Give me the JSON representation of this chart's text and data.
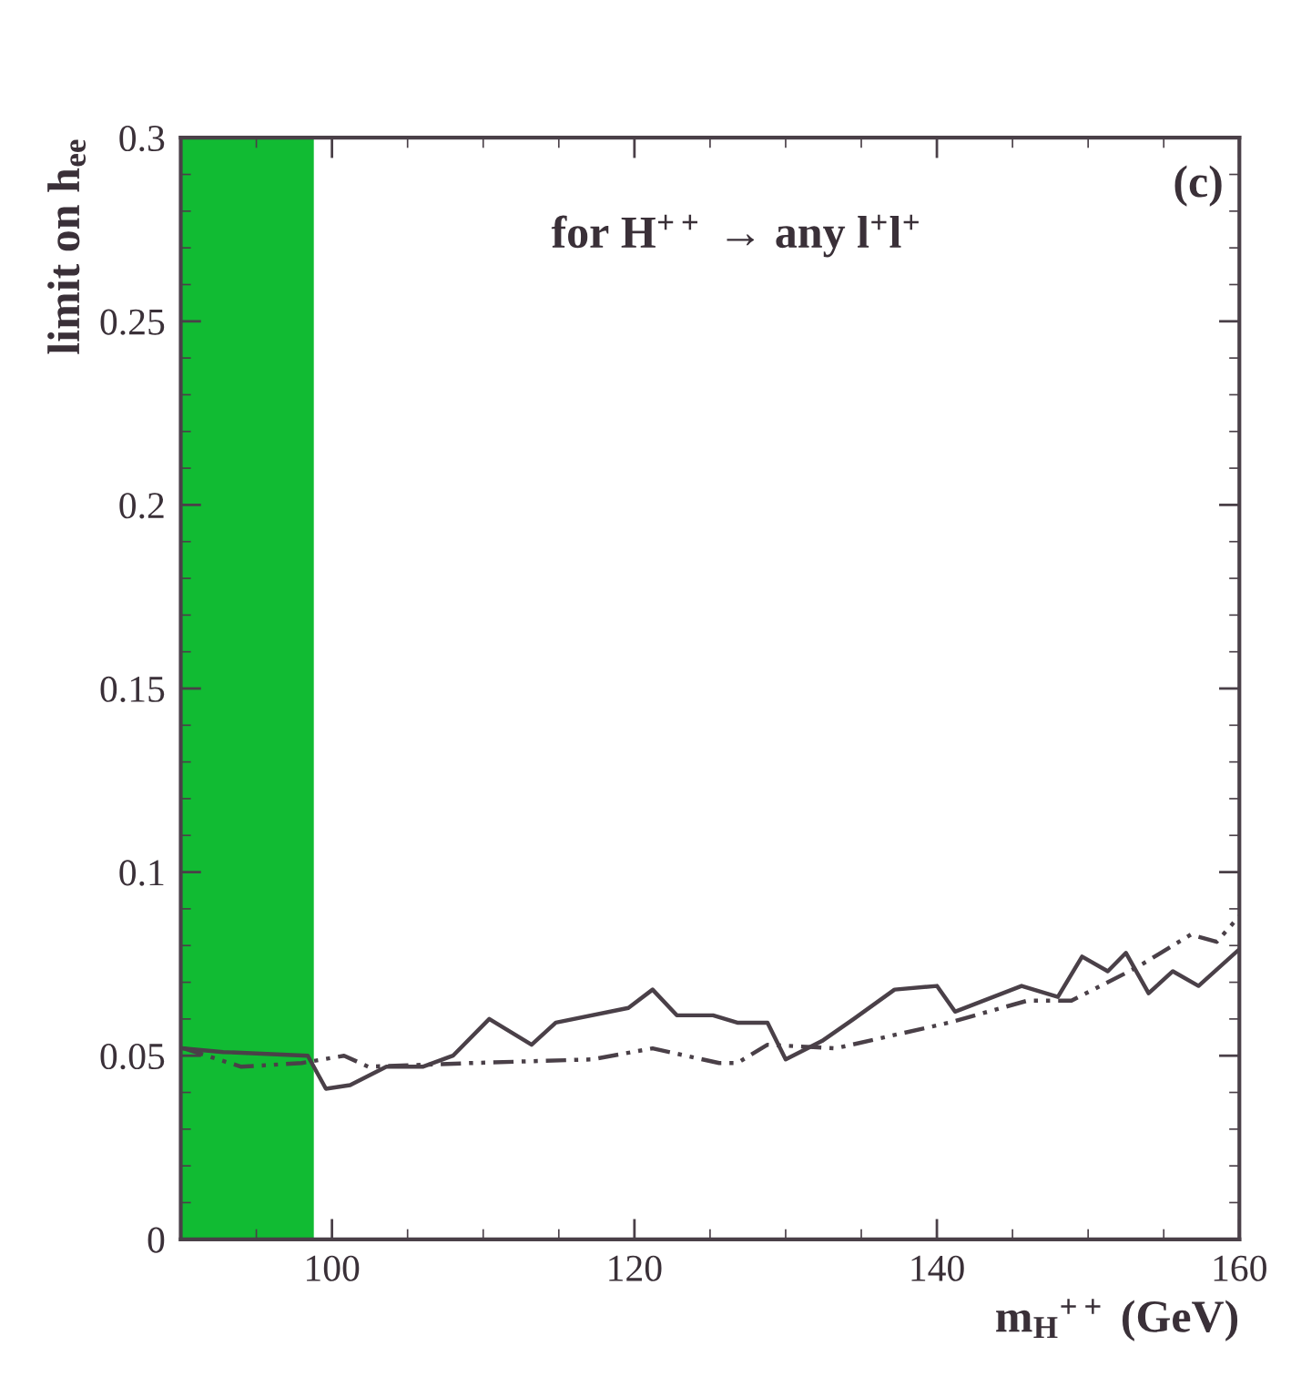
{
  "chart_data": {
    "type": "line",
    "ylabel": "limit on h$_{ee}$",
    "xlabel": "m$_{H}$$^{++}$ (GeV)",
    "annotations": [
      "for H$^{++}$ → any l$^{+}$l$^{+}$",
      "(c)"
    ],
    "xlim": [
      90,
      160
    ],
    "xticks": [
      100,
      120,
      140,
      160
    ],
    "ylim": [
      0,
      0.3
    ],
    "yticks": [
      0,
      0.05,
      0.1,
      0.15,
      0.2,
      0.25,
      0.3
    ],
    "bands": [
      {
        "axis": "x",
        "from": 90,
        "to": 98.8,
        "color": "#11bb33"
      }
    ],
    "grid": false,
    "series": [
      {
        "color": "#4a4048",
        "line_style": "solid",
        "x": [
          90.2,
          92.8,
          98.4,
          99.6,
          101.2,
          103.6,
          106,
          108,
          110.4,
          113.2,
          114.8,
          119.6,
          121.2,
          122.8,
          125.2,
          126.8,
          128.8,
          130,
          132.4,
          134.5,
          137.2,
          140,
          141.2,
          145.6,
          148,
          149.6,
          151.3,
          152.5,
          154,
          155.6,
          157.3,
          160
        ],
        "values": [
          0.052,
          0.051,
          0.05,
          0.041,
          0.042,
          0.047,
          0.047,
          0.05,
          0.06,
          0.053,
          0.059,
          0.063,
          0.068,
          0.061,
          0.061,
          0.059,
          0.059,
          0.049,
          0.054,
          0.06,
          0.068,
          0.069,
          0.062,
          0.069,
          0.066,
          0.077,
          0.073,
          0.078,
          0.067,
          0.073,
          0.069,
          0.079
        ]
      },
      {
        "color": "#4a4048",
        "line_style": "dashed",
        "x": [
          90.2,
          94,
          98,
          100.8,
          102.4,
          109.2,
          117.2,
          121.2,
          125.6,
          126.8,
          128.8,
          133.3,
          140.8,
          146,
          148.9,
          153.2,
          156.8,
          158.5,
          160
        ],
        "values": [
          0.052,
          0.047,
          0.048,
          0.05,
          0.047,
          0.048,
          0.049,
          0.052,
          0.048,
          0.048,
          0.053,
          0.052,
          0.059,
          0.065,
          0.065,
          0.074,
          0.083,
          0.081,
          0.088
        ]
      }
    ]
  }
}
